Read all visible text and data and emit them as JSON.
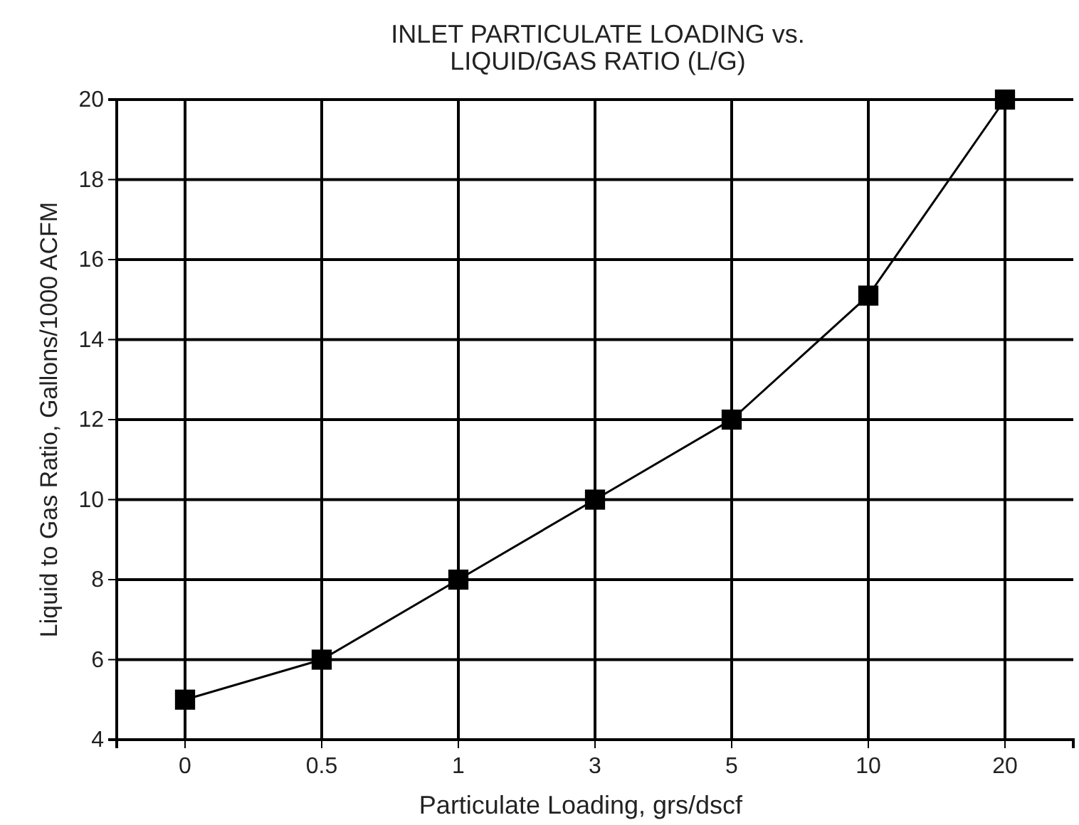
{
  "chart_data": {
    "type": "line",
    "title": "INLET PARTICULATE LOADING vs.\nLIQUID/GAS RATIO (L/G)",
    "xlabel": "Particulate Loading, grs/dscf",
    "ylabel": "Liquid to Gas Ratio, Gallons/1000 ACFM",
    "categories": [
      "0",
      "0.5",
      "1",
      "3",
      "5",
      "10",
      "20"
    ],
    "series": [
      {
        "color": "#000000",
        "values": [
          5,
          6,
          8,
          10,
          12,
          15.1,
          20
        ]
      }
    ],
    "ylim": [
      4,
      20
    ],
    "yticks": [
      4,
      6,
      8,
      10,
      12,
      14,
      16,
      18,
      20
    ],
    "grid": true,
    "marker": "square",
    "line_style": "solid"
  }
}
